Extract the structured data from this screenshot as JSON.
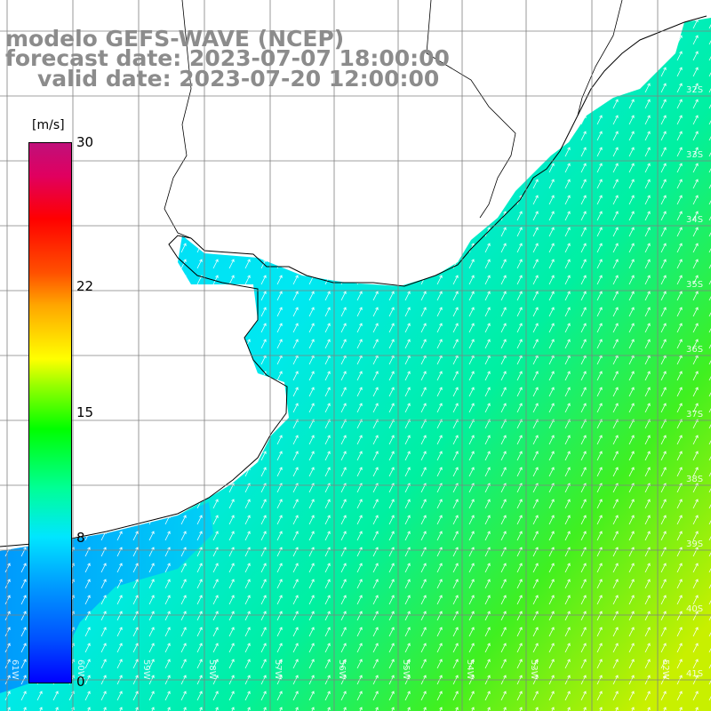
{
  "title": {
    "line1": "modelo GEFS-WAVE (NCEP)",
    "line2": "forecast date: 2023-07-07 18:00:00",
    "line3": "valid date: 2023-07-20 12:00:00"
  },
  "colorbar": {
    "unit": "[m/s]",
    "ticks": [
      {
        "value": 30,
        "label": "30"
      },
      {
        "value": 22,
        "label": "22"
      },
      {
        "value": 15,
        "label": "15"
      },
      {
        "value": 8,
        "label": "8"
      },
      {
        "value": 0,
        "label": "0"
      }
    ],
    "min": 0,
    "max": 30
  },
  "lat_labels": [
    "32S",
    "33S",
    "34S",
    "35S",
    "36S",
    "37S",
    "38S",
    "39S",
    "40S",
    "41S"
  ],
  "lon_labels": [
    "61W",
    "60W",
    "59W",
    "58W",
    "57W",
    "56W",
    "55W",
    "54W",
    "53W",
    "52W"
  ],
  "colors": {
    "land": "#ffffff",
    "coast": "#000000",
    "grid": "#808080",
    "arrow": "#ffffff",
    "title": "#8c8c8c"
  },
  "field_description": {
    "variable": "wind speed",
    "unit": "m/s",
    "direction": "arrows pointing north-northeast"
  }
}
